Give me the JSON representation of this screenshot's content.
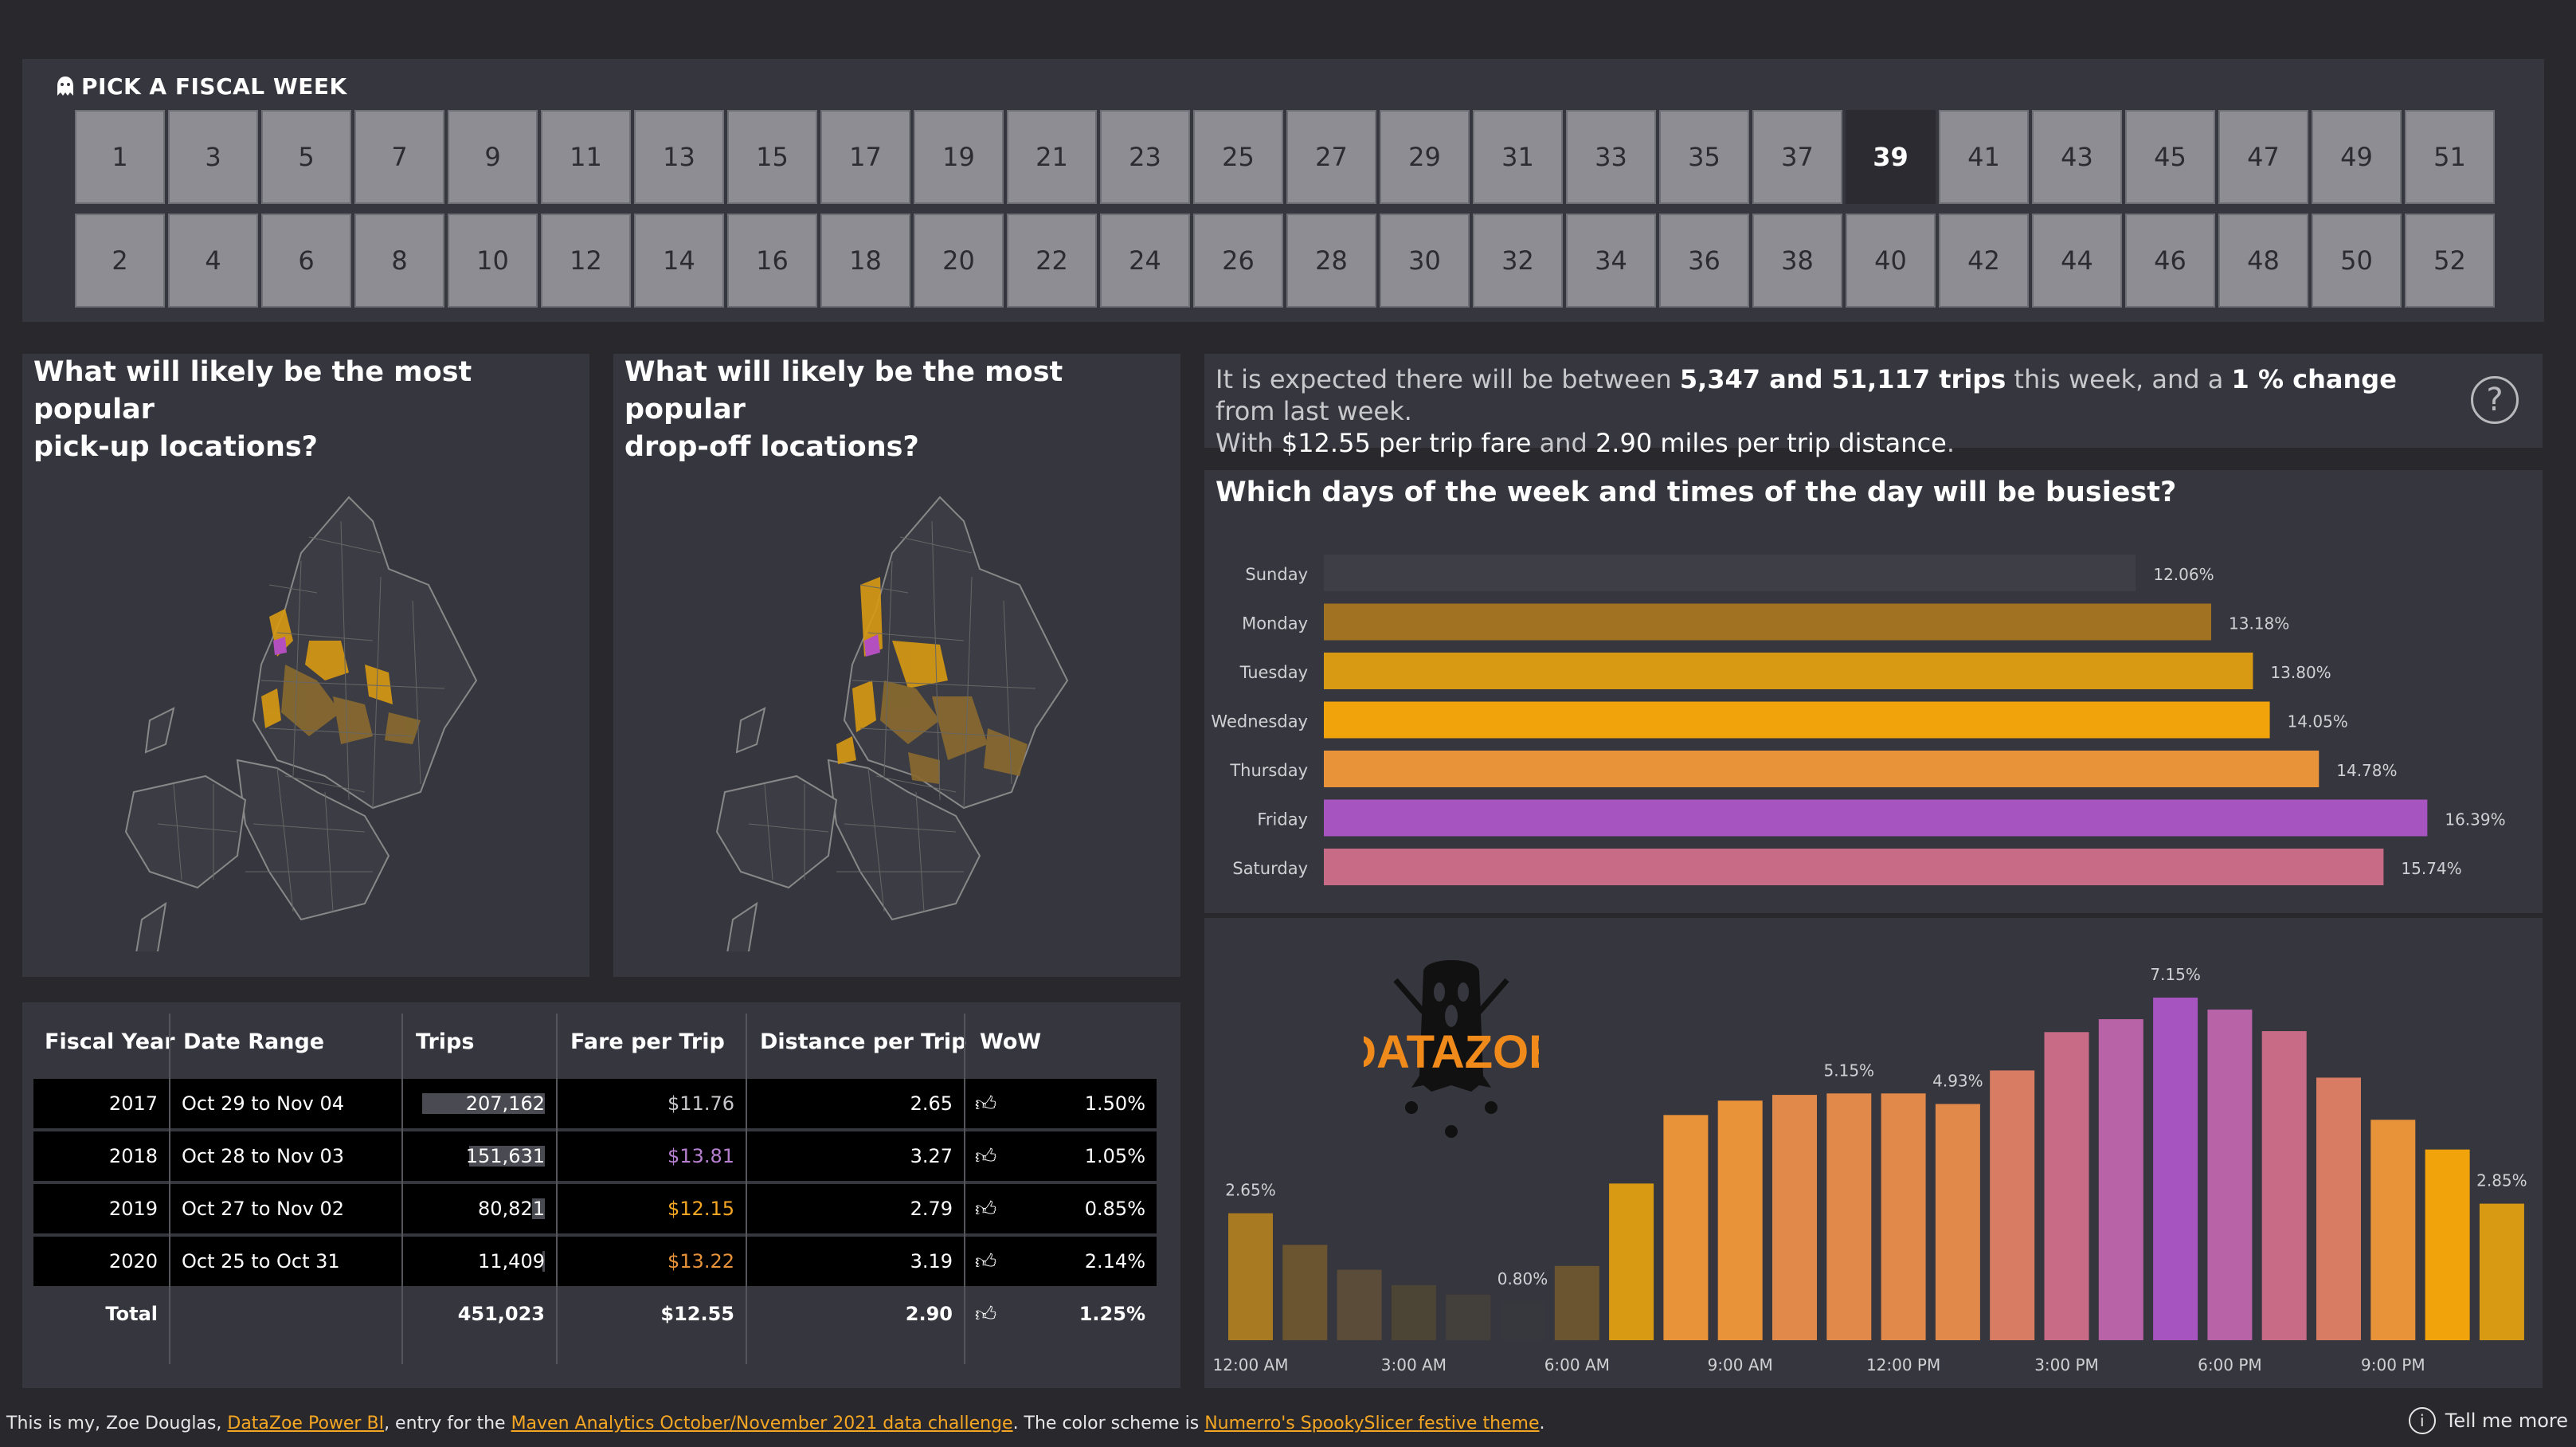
{
  "week_slicer": {
    "title": "PICK A FISCAL WEEK",
    "row1": [
      "1",
      "3",
      "5",
      "7",
      "9",
      "11",
      "13",
      "15",
      "17",
      "19",
      "21",
      "23",
      "25",
      "27",
      "29",
      "31",
      "33",
      "35",
      "37",
      "39",
      "41",
      "43",
      "45",
      "47",
      "49",
      "51"
    ],
    "row2": [
      "2",
      "4",
      "6",
      "8",
      "10",
      "12",
      "14",
      "16",
      "18",
      "20",
      "22",
      "24",
      "26",
      "28",
      "30",
      "32",
      "34",
      "36",
      "38",
      "40",
      "42",
      "44",
      "46",
      "48",
      "50",
      "52"
    ],
    "selected": "39"
  },
  "pickup": {
    "title_line1": "What will likely be the most popular",
    "title_line2": "pick-up locations?"
  },
  "dropoff": {
    "title_line1": "What will likely be the most popular",
    "title_line2": "drop-off locations?"
  },
  "summary": {
    "p1": "It is expected there will be between ",
    "trips_range": "5,347 and 51,117 trips",
    "p2": " this week, and a ",
    "change": "1 % change",
    "p3": " from last week.",
    "p4": "With ",
    "fare": "$12.55 per trip fare",
    "p5": " and ",
    "distance": "2.90 miles per trip distance",
    "p6": "."
  },
  "days_chart_title": "Which days of the week and times of the day will be busiest?",
  "logo_text": "DATAZOE",
  "chart_data": [
    {
      "type": "bar",
      "orientation": "horizontal",
      "categories": [
        "Sunday",
        "Monday",
        "Tuesday",
        "Wednesday",
        "Thursday",
        "Friday",
        "Saturday"
      ],
      "values": [
        12.06,
        13.18,
        13.8,
        14.05,
        14.78,
        16.39,
        15.74
      ],
      "labels": [
        "12.06%",
        "13.18%",
        "13.80%",
        "14.05%",
        "14.78%",
        "16.39%",
        "15.74%"
      ],
      "colors": [
        "#3e3e46",
        "#a07222",
        "#d89a12",
        "#f0a30a",
        "#e8923a",
        "#a554c0",
        "#c86b86"
      ]
    },
    {
      "type": "bar",
      "x_ticks": [
        "12:00 AM",
        "3:00 AM",
        "6:00 AM",
        "9:00 AM",
        "12:00 PM",
        "3:00 PM",
        "6:00 PM",
        "9:00 PM"
      ],
      "hours": [
        0,
        1,
        2,
        3,
        4,
        5,
        6,
        7,
        8,
        9,
        10,
        11,
        12,
        13,
        14,
        15,
        16,
        17,
        18,
        19,
        20,
        21,
        22,
        23
      ],
      "values": [
        2.65,
        1.99,
        1.47,
        1.15,
        0.95,
        0.8,
        1.55,
        3.27,
        4.7,
        5.0,
        5.12,
        5.15,
        5.15,
        4.93,
        5.63,
        6.43,
        6.7,
        7.15,
        6.9,
        6.45,
        5.48,
        4.6,
        3.98,
        2.85
      ],
      "data_labels": {
        "0": "2.65%",
        "5": "0.80%",
        "11": "5.15%",
        "13": "4.93%",
        "17": "7.15%",
        "23": "2.85%"
      },
      "colors": [
        "#a87a22",
        "#6b5530",
        "#5a4c38",
        "#4c4536",
        "#433f3a",
        "#37373e",
        "#6b5530",
        "#d89a12",
        "#e8923a",
        "#e8923a",
        "#e0894a",
        "#e0894a",
        "#e0894a",
        "#e0894a",
        "#d87c63",
        "#c86b86",
        "#b862a8",
        "#a554c0",
        "#b862a8",
        "#c86b86",
        "#d87c63",
        "#e8923a",
        "#f0a30a",
        "#d89a12"
      ]
    }
  ],
  "table": {
    "headers": [
      "Fiscal Year",
      "Date Range",
      "Trips",
      "Fare per Trip",
      "Distance per Trip",
      "WoW"
    ],
    "rows": [
      {
        "year": "2017",
        "range": "Oct 29 to Nov 04",
        "trips": "207,162",
        "trips_frac": 0.94,
        "fare": "$11.76",
        "fare_color": "#c8c8cc",
        "dist": "2.65",
        "wow": "1.50%"
      },
      {
        "year": "2018",
        "range": "Oct 28 to Nov 03",
        "trips": "151,631",
        "trips_frac": 0.58,
        "fare": "$13.81",
        "fare_color": "#b77fd0",
        "dist": "3.27",
        "wow": "1.05%"
      },
      {
        "year": "2019",
        "range": "Oct 27 to Nov 02",
        "trips": "80,821",
        "trips_frac": 0.1,
        "fare": "$12.15",
        "fare_color": "#f5a623",
        "dist": "2.79",
        "wow": "0.85%"
      },
      {
        "year": "2020",
        "range": "Oct 25 to Oct 31",
        "trips": "11,409",
        "trips_frac": 0.02,
        "fare": "$13.22",
        "fare_color": "#e8923a",
        "dist": "3.19",
        "wow": "2.14%"
      }
    ],
    "total": {
      "label": "Total",
      "trips": "451,023",
      "fare": "$12.55",
      "dist": "2.90",
      "wow": "1.25%"
    }
  },
  "footer": {
    "t1": "This is my, Zoe Douglas, ",
    "link1": "DataZoe Power BI",
    "t2": ", entry for the ",
    "link2": "Maven Analytics October/November 2021 data challenge",
    "t3": ". The color scheme is ",
    "link3": "Numerro's SpookySlicer festive theme",
    "t4": "."
  },
  "tell_me_more": "Tell me more",
  "help_icon": "?",
  "info_icon": "i"
}
